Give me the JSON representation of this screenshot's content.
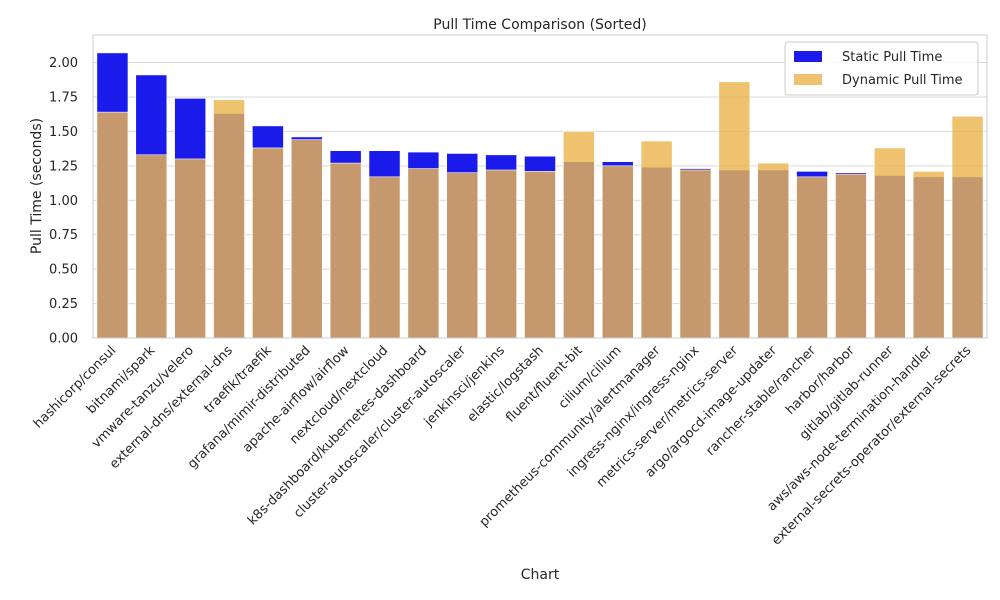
{
  "chart_data": {
    "type": "bar",
    "title": "Pull Time Comparison (Sorted)",
    "xlabel": "Chart",
    "ylabel": "Pull Time (seconds)",
    "ylim": [
      0,
      2.2
    ],
    "yticks": [
      "0.00",
      "0.25",
      "0.50",
      "0.75",
      "1.00",
      "1.25",
      "1.50",
      "1.75",
      "2.00"
    ],
    "grid": true,
    "legend_position": "top-right",
    "categories": [
      "hashicorp/consul",
      "bitnami/spark",
      "vmware-tanzu/velero",
      "external-dns/external-dns",
      "traefik/traefik",
      "grafana/mimir-distributed",
      "apache-airflow/airflow",
      "nextcloud/nextcloud",
      "k8s-dashboard/kubernetes-dashboard",
      "cluster-autoscaler/cluster-autoscaler",
      "jenkinsci/jenkins",
      "elastic/logstash",
      "fluent/fluent-bit",
      "cilium/cilium",
      "prometheus-community/alertmanager",
      "ingress-nginx/ingress-nginx",
      "metrics-server/metrics-server",
      "argo/argocd-image-updater",
      "rancher-stable/rancher",
      "harbor/harbor",
      "gitlab/gitlab-runner",
      "aws/aws-node-termination-handler",
      "external-secrets-operator/external-secrets"
    ],
    "series": [
      {
        "name": "Static Pull Time",
        "color": "#1a1aeb",
        "values": [
          2.07,
          1.91,
          1.74,
          1.63,
          1.54,
          1.46,
          1.36,
          1.36,
          1.35,
          1.34,
          1.33,
          1.32,
          1.28,
          1.28,
          1.24,
          1.23,
          1.22,
          1.22,
          1.21,
          1.2,
          1.18,
          1.17,
          1.17
        ]
      },
      {
        "name": "Dynamic Pull Time",
        "color": "#ebb550",
        "values": [
          1.64,
          1.33,
          1.3,
          1.73,
          1.38,
          1.44,
          1.27,
          1.17,
          1.23,
          1.2,
          1.22,
          1.21,
          1.5,
          1.25,
          1.43,
          1.22,
          1.86,
          1.27,
          1.17,
          1.19,
          1.38,
          1.21,
          1.61
        ]
      }
    ]
  }
}
